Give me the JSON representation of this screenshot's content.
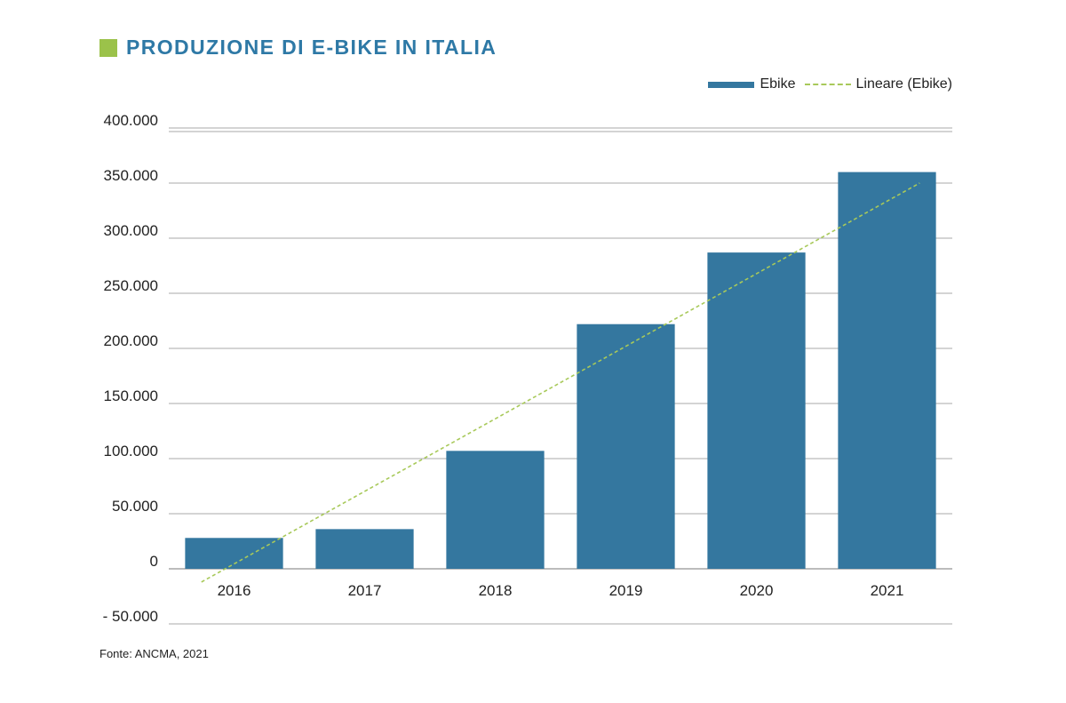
{
  "title": "PRODUZIONE DI E-BIKE IN ITALIA",
  "source": "Fonte: ANCMA, 2021",
  "colors": {
    "bar": "#34779f",
    "trend": "#a8c95a",
    "title": "#2e79a6",
    "accent_square": "#9bc24a"
  },
  "chart_data": {
    "type": "bar",
    "categories": [
      "2016",
      "2017",
      "2018",
      "2019",
      "2020",
      "2021"
    ],
    "series": [
      {
        "name": "Ebike",
        "values": [
          28000,
          36000,
          107000,
          222000,
          287000,
          360000
        ]
      }
    ],
    "trendline": {
      "name": "Lineare (Ebike)",
      "style": "dashed",
      "start": -12000,
      "end": 350000
    },
    "yticks": [
      -50000,
      0,
      50000,
      100000,
      150000,
      200000,
      250000,
      300000,
      350000,
      400000
    ],
    "ytick_labels": [
      "- 50.000",
      "0",
      "50.000",
      "100.000",
      "150.000",
      "200.000",
      "250.000",
      "300.000",
      "350.000",
      "400.000"
    ],
    "ylim": [
      -50000,
      400000
    ],
    "grid": true,
    "legend_position": "top-right"
  }
}
